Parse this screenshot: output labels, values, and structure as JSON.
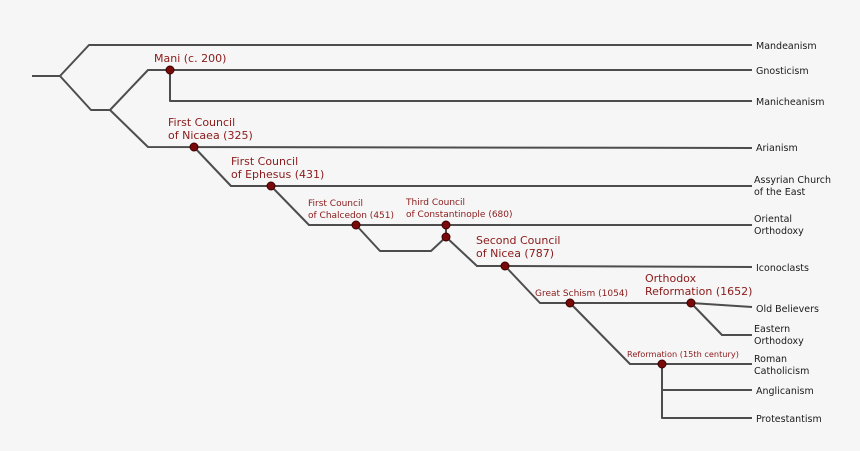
{
  "colors": {
    "background": "#f6f6f6",
    "branch": "#4d4d4d",
    "event_text": "#8b1a1a",
    "node": "#7a0a0a",
    "leaf_text": "#1a1a1a"
  },
  "leaves": {
    "mandeanism": [
      "Mandeanism"
    ],
    "gnosticism": [
      "Gnosticism"
    ],
    "manicheanism": [
      "Manicheanism"
    ],
    "arianism": [
      "Arianism"
    ],
    "assyrian": [
      "Assyrian Church",
      "of the East"
    ],
    "oriental": [
      "Oriental",
      "Orthodoxy"
    ],
    "iconoclasts": [
      "Iconoclasts"
    ],
    "old_believers": [
      "Old Believers"
    ],
    "eastern": [
      "Eastern",
      "Orthodoxy"
    ],
    "roman": [
      "Roman",
      "Catholicism"
    ],
    "anglicanism": [
      "Anglicanism"
    ],
    "protestantism": [
      "Protestantism"
    ]
  },
  "events": {
    "mani": [
      "Mani (c. 200)"
    ],
    "nicaea": [
      "First Council",
      "of Nicaea (325)"
    ],
    "ephesus": [
      "First Council",
      "of Ephesus (431)"
    ],
    "chalcedon": [
      "First Council",
      "of Chalcedon (451)"
    ],
    "constantinople": [
      "Third Council",
      "of Constantinople (680)"
    ],
    "nicea2": [
      "Second Council",
      "of Nicea (787)"
    ],
    "schism": [
      "Great Schism (1054)"
    ],
    "orthodox_ref": [
      "Orthodox",
      "Reformation (1652)"
    ],
    "reformation": [
      "Reformation (15th century)"
    ]
  }
}
